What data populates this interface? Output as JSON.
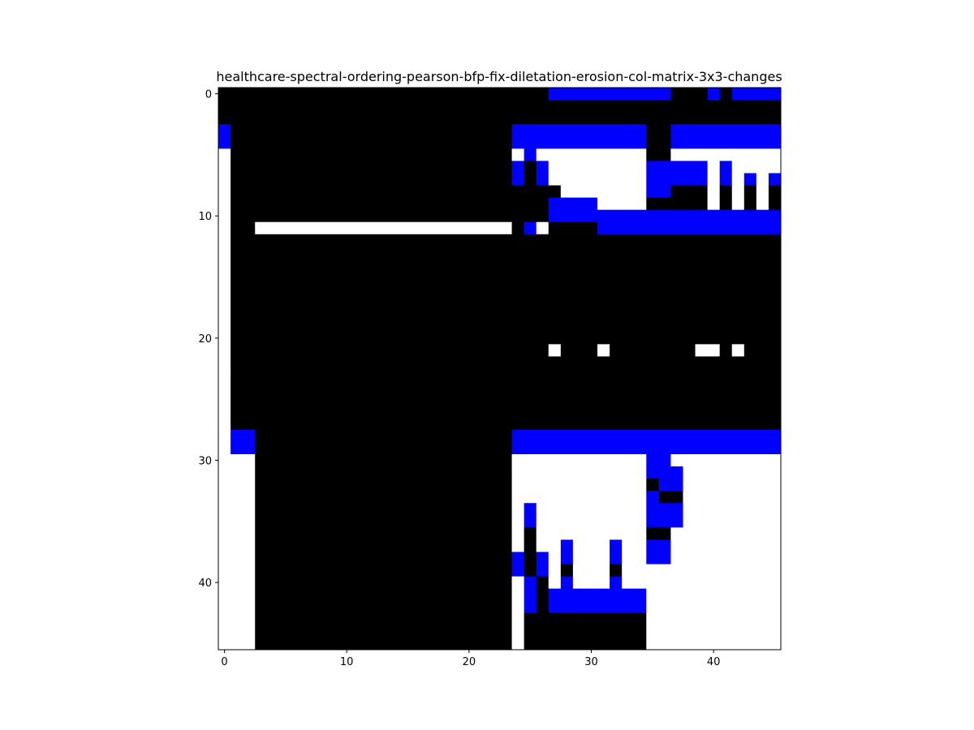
{
  "chart_data": {
    "type": "heatmap",
    "title": "healthcare-spectral-ordering-pearson-bfp-fix-diletation-erosion-col-matrix-3x3-changes",
    "xlabel": "",
    "ylabel": "",
    "xlim": [
      -0.5,
      45.5
    ],
    "ylim": [
      45.5,
      -0.5
    ],
    "x_ticks": [
      0,
      10,
      20,
      30,
      40
    ],
    "y_ticks": [
      0,
      10,
      20,
      30,
      40
    ],
    "colors": {
      "W": "#ffffff",
      "K": "#000000",
      "B": "#0000ff"
    },
    "grid": false,
    "rows": [
      "KKKKKKKKKKKKKKKKKKKKKKKKKKKBBBBBBBBBBKKKBKBBBB",
      "KKKKKKKKKKKKKKKKKKKKKKKKKKKKKKKKKKKKKKKKKKKKKK",
      "KKKKKKKKKKKKKKKKKKKKKKKKKKKKKKKKKKKKKKKKKKKKKK",
      "BKKKKKKKKKKKKKKKKKKKKKKKBBBBBBBBBBBKKBBBBBBBBB",
      "BKKKKKKKKKKKKKKKKKKKKKKKBBBBBBBBBBBKKBBBBBBBBB",
      "WKKKKKKKKKKKKKKKKKKKKKKKWBWWWWWWWWWKKWWWWWWWWW",
      "WKKKKKKKKKKKKKKKKKKKKKKKBKBWWWWWWWWBBBBBWBWWWW",
      "WKKKKKKKKKKKKKKKKKKKKKKKBKBWWWWWWWWBBBBBWBWBWB",
      "WKKKKKKKKKKKKKKKKKKKKKKKKKKKWWWWWWWBBKKKWKWKWK",
      "WKKKKKKKKKKKKKKKKKKKKKKKKKKBBBBWWWWKKKKKWKWKWK",
      "WKKKKKKKKKKKKKKKKKKKKKKKKKKBBBBBBBBBBBBBBBBBBB",
      "WKKWWWWWWWWWWWWWWWWWWWWWKBWKKKKBBBBBBBBBBBBBBB",
      "WKKKKKKKKKKKKKKKKKKKKKKKKKKKKKKKKKKKKKKKKKKKKK",
      "WKKKKKKKKKKKKKKKKKKKKKKKKKKKKKKKKKKKKKKKKKKKKK",
      "WKKKKKKKKKKKKKKKKKKKKKKKKKKKKKKKKKKKKKKKKKKKKK",
      "WKKKKKKKKKKKKKKKKKKKKKKKKKKKKKKKKKKKKKKKKKKKKK",
      "WKKKKKKKKKKKKKKKKKKKKKKKKKKKKKKKKKKKKKKKKKKKKK",
      "WKKKKKKKKKKKKKKKKKKKKKKKKKKKKKKKKKKKKKKKKKKKKK",
      "WKKKKKKKKKKKKKKKKKKKKKKKKKKKKKKKKKKKKKKKKKKKKK",
      "WKKKKKKKKKKKKKKKKKKKKKKKKKKKKKKKKKKKKKKKKKKKKK",
      "WKKKKKKKKKKKKKKKKKKKKKKKKKKKKKKKKKKKKKKKKKKKKK",
      "WKKKKKKKKKKKKKKKKKKKKKKKKKKWKKKWKKKKKKKWWKWKKK",
      "WKKKKKKKKKKKKKKKKKKKKKKKKKKKKKKKKKKKKKKKKKKKKK",
      "WKKKKKKKKKKKKKKKKKKKKKKKKKKKKKKKKKKKKKKKKKKKKK",
      "WKKKKKKKKKKKKKKKKKKKKKKKKKKKKKKKKKKKKKKKKKKKKK",
      "WKKKKKKKKKKKKKKKKKKKKKKKKKKKKKKKKKKKKKKKKKKKKK",
      "WKKKKKKKKKKKKKKKKKKKKKKKKKKKKKKKKKKKKKKKKKKKKK",
      "WKKKKKKKKKKKKKKKKKKKKKKKKKKKKKKKKKKKKKKKKKKKKK",
      "WBBKKKKKKKKKKKKKKKKKKKKKBBBBBBBBBBBBBBBBBBBBBB",
      "WBBKKKKKKKKKKKKKKKKKKKKKBBBBBBBBBBBBBBBBBBBBBB",
      "WWWKKKKKKKKKKKKKKKKKKKKKWWWWWWWWWWWBBWWWWWWWWW",
      "WWWKKKKKKKKKKKKKKKKKKKKKWWWWWWWWWWWBBBWWWWWWWW",
      "WWWKKKKKKKKKKKKKKKKKKKKKWWWWWWWWWWWKBBWWWWWWWW",
      "WWWKKKKKKKKKKKKKKKKKKKKKWWWWWWWWWWWBKKWWWWWWWW",
      "WWWKKKKKKKKKKKKKKKKKKKKKWBWWWWWWWWWBBBWWWWWWWW",
      "WWWKKKKKKKKKKKKKKKKKKKKKWBWWWWWWWWWBBBWWWWWWWW",
      "WWWKKKKKKKKKKKKKKKKKKKKKWKWWWWWWWWWKKWWWWWWWWW",
      "WWWKKKKKKKKKKKKKKKKKKKKKWKWWBWWWBWWBBWWWWWWWWW",
      "WWWKKKKKKKKKKKKKKKKKKKKKBKBWBWWWBWWBBWWWWWWWWW",
      "WWWKKKKKKKKKKKKKKKKKKKKKBKBWKWWWKWWWWWWWWWWWWW",
      "WWWKKKKKKKKKKKKKKKKKKKKKWBKWBWWWBWWWWWWWWWWWWW",
      "WWWKKKKKKKKKKKKKKKKKKKKKWBKBBBBBBBBWWWWWWWWWWW",
      "WWWKKKKKKKKKKKKKKKKKKKKKWBKBBBBBBBBWWWWWWWWWWW",
      "WWWKKKKKKKKKKKKKKKKKKKKKWKKKKKKKKKKWWWWWWWWWWW",
      "WWWKKKKKKKKKKKKKKKKKKKKKWKKKKKKKKKKWWWWWWWWWWW",
      "WWWKKKKKKKKKKKKKKKKKKKKKWKKKKKKKKKKWWWWWWWWWWW"
    ]
  }
}
